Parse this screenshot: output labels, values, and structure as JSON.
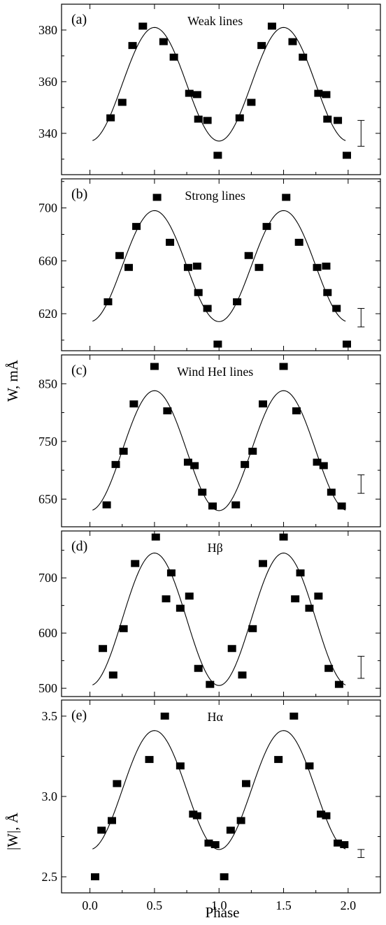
{
  "figure": {
    "xlabel": "Phase",
    "ylabel_upper": "W, mÅ",
    "ylabel_lower": "|W|, Å"
  },
  "chart_data": [
    {
      "id": "a",
      "type": "scatter",
      "tag": "(a)",
      "title": "Weak lines",
      "xlim": [
        -0.22,
        2.25
      ],
      "ylim": [
        324,
        390
      ],
      "xticks": [
        0.0,
        0.5,
        1.0,
        1.5,
        2.0
      ],
      "xtick_labels": [
        "0.0",
        "0.5",
        "1.0",
        "1.5",
        "2.0"
      ],
      "yticks": [
        340,
        360,
        380
      ],
      "ytick_labels": [
        "340",
        "360",
        "380"
      ],
      "show_xtick_labels": false,
      "grid": false,
      "points": [
        {
          "x": 0.16,
          "y": 346
        },
        {
          "x": 0.25,
          "y": 352
        },
        {
          "x": 0.33,
          "y": 374
        },
        {
          "x": 0.41,
          "y": 381.5
        },
        {
          "x": 0.57,
          "y": 375.5
        },
        {
          "x": 0.65,
          "y": 369.5
        },
        {
          "x": 0.77,
          "y": 355.5
        },
        {
          "x": 0.83,
          "y": 355
        },
        {
          "x": 0.84,
          "y": 345.5
        },
        {
          "x": 0.91,
          "y": 345
        },
        {
          "x": 0.99,
          "y": 331.5
        },
        {
          "x": 1.16,
          "y": 346
        },
        {
          "x": 1.25,
          "y": 352
        },
        {
          "x": 1.33,
          "y": 374
        },
        {
          "x": 1.41,
          "y": 381.5
        },
        {
          "x": 1.57,
          "y": 375.5
        },
        {
          "x": 1.65,
          "y": 369.5
        },
        {
          "x": 1.77,
          "y": 355.5
        },
        {
          "x": 1.83,
          "y": 355
        },
        {
          "x": 1.84,
          "y": 345.5
        },
        {
          "x": 1.92,
          "y": 345
        },
        {
          "x": 1.99,
          "y": 331.5
        }
      ],
      "fit": {
        "mean": 359,
        "amplitude": 22,
        "x_range": [
          0.02,
          1.98
        ]
      },
      "error_bar": {
        "x": 2.1,
        "y_low": 335,
        "y_high": 345
      }
    },
    {
      "id": "b",
      "type": "scatter",
      "tag": "(b)",
      "title": "Strong lines",
      "xlim": [
        -0.22,
        2.25
      ],
      "ylim": [
        592,
        722
      ],
      "xticks": [
        0.0,
        0.5,
        1.0,
        1.5,
        2.0
      ],
      "xtick_labels": [
        "0.0",
        "0.5",
        "1.0",
        "1.5",
        "2.0"
      ],
      "yticks": [
        620,
        660,
        700
      ],
      "ytick_labels": [
        "620",
        "660",
        "700"
      ],
      "show_xtick_labels": false,
      "grid": false,
      "points": [
        {
          "x": 0.14,
          "y": 629
        },
        {
          "x": 0.23,
          "y": 664
        },
        {
          "x": 0.3,
          "y": 655
        },
        {
          "x": 0.36,
          "y": 686
        },
        {
          "x": 0.52,
          "y": 708
        },
        {
          "x": 0.62,
          "y": 674
        },
        {
          "x": 0.76,
          "y": 655
        },
        {
          "x": 0.83,
          "y": 656
        },
        {
          "x": 0.84,
          "y": 636
        },
        {
          "x": 0.91,
          "y": 624
        },
        {
          "x": 0.99,
          "y": 597
        },
        {
          "x": 1.14,
          "y": 629
        },
        {
          "x": 1.23,
          "y": 664
        },
        {
          "x": 1.31,
          "y": 655
        },
        {
          "x": 1.37,
          "y": 686
        },
        {
          "x": 1.52,
          "y": 708
        },
        {
          "x": 1.62,
          "y": 674
        },
        {
          "x": 1.76,
          "y": 655
        },
        {
          "x": 1.83,
          "y": 656
        },
        {
          "x": 1.84,
          "y": 636
        },
        {
          "x": 1.91,
          "y": 624
        },
        {
          "x": 1.99,
          "y": 597
        }
      ],
      "fit": {
        "mean": 656,
        "amplitude": 42,
        "x_range": [
          0.02,
          1.98
        ]
      },
      "error_bar": {
        "x": 2.1,
        "y_low": 610,
        "y_high": 624
      }
    },
    {
      "id": "c",
      "type": "scatter",
      "tag": "(c)",
      "title": "Wind HeI lines",
      "xlim": [
        -0.22,
        2.25
      ],
      "ylim": [
        602,
        900
      ],
      "xticks": [
        0.0,
        0.5,
        1.0,
        1.5,
        2.0
      ],
      "xtick_labels": [
        "0.0",
        "0.5",
        "1.0",
        "1.5",
        "2.0"
      ],
      "yticks": [
        650,
        750,
        850
      ],
      "ytick_labels": [
        "650",
        "750",
        "850"
      ],
      "show_xtick_labels": false,
      "grid": false,
      "points": [
        {
          "x": 0.13,
          "y": 640
        },
        {
          "x": 0.2,
          "y": 710
        },
        {
          "x": 0.26,
          "y": 733
        },
        {
          "x": 0.34,
          "y": 815
        },
        {
          "x": 0.5,
          "y": 880
        },
        {
          "x": 0.6,
          "y": 803
        },
        {
          "x": 0.76,
          "y": 714
        },
        {
          "x": 0.81,
          "y": 708
        },
        {
          "x": 0.87,
          "y": 662
        },
        {
          "x": 0.95,
          "y": 638
        },
        {
          "x": 1.13,
          "y": 640
        },
        {
          "x": 1.2,
          "y": 710
        },
        {
          "x": 1.26,
          "y": 733
        },
        {
          "x": 1.34,
          "y": 815
        },
        {
          "x": 1.5,
          "y": 880
        },
        {
          "x": 1.6,
          "y": 803
        },
        {
          "x": 1.76,
          "y": 714
        },
        {
          "x": 1.81,
          "y": 708
        },
        {
          "x": 1.87,
          "y": 662
        },
        {
          "x": 1.95,
          "y": 638
        }
      ],
      "fit": {
        "mean": 734,
        "amplitude": 104,
        "x_range": [
          0.02,
          1.98
        ]
      },
      "error_bar": {
        "x": 2.1,
        "y_low": 660,
        "y_high": 692
      }
    },
    {
      "id": "d",
      "type": "scatter",
      "tag": "(d)",
      "title": "Hβ",
      "xlim": [
        -0.22,
        2.25
      ],
      "ylim": [
        485,
        785
      ],
      "xticks": [
        0.0,
        0.5,
        1.0,
        1.5,
        2.0
      ],
      "xtick_labels": [
        "0.0",
        "0.5",
        "1.0",
        "1.5",
        "2.0"
      ],
      "yticks": [
        500,
        600,
        700
      ],
      "ytick_labels": [
        "500",
        "600",
        "700"
      ],
      "show_xtick_labels": false,
      "grid": false,
      "points": [
        {
          "x": 0.1,
          "y": 572
        },
        {
          "x": 0.18,
          "y": 524
        },
        {
          "x": 0.26,
          "y": 608
        },
        {
          "x": 0.35,
          "y": 726
        },
        {
          "x": 0.51,
          "y": 774
        },
        {
          "x": 0.59,
          "y": 662
        },
        {
          "x": 0.63,
          "y": 709
        },
        {
          "x": 0.7,
          "y": 645
        },
        {
          "x": 0.77,
          "y": 667
        },
        {
          "x": 0.84,
          "y": 536
        },
        {
          "x": 0.93,
          "y": 507
        },
        {
          "x": 1.1,
          "y": 572
        },
        {
          "x": 1.18,
          "y": 524
        },
        {
          "x": 1.26,
          "y": 608
        },
        {
          "x": 1.34,
          "y": 726
        },
        {
          "x": 1.5,
          "y": 774
        },
        {
          "x": 1.59,
          "y": 662
        },
        {
          "x": 1.63,
          "y": 709
        },
        {
          "x": 1.7,
          "y": 645
        },
        {
          "x": 1.77,
          "y": 667
        },
        {
          "x": 1.85,
          "y": 536
        },
        {
          "x": 1.93,
          "y": 507
        }
      ],
      "fit": {
        "mean": 625,
        "amplitude": 120,
        "x_range": [
          0.02,
          1.98
        ]
      },
      "error_bar": {
        "x": 2.1,
        "y_low": 518,
        "y_high": 558
      }
    },
    {
      "id": "e",
      "type": "scatter",
      "tag": "(e)",
      "title": "Hα",
      "xlim": [
        -0.22,
        2.25
      ],
      "ylim": [
        2.4,
        3.6
      ],
      "xticks": [
        0.0,
        0.5,
        1.0,
        1.5,
        2.0
      ],
      "xtick_labels": [
        "0.0",
        "0.5",
        "1.0",
        "1.5",
        "2.0"
      ],
      "yticks": [
        2.5,
        3.0,
        3.5
      ],
      "ytick_labels": [
        "2.5",
        "3.0",
        "3.5"
      ],
      "show_xtick_labels": true,
      "grid": false,
      "points": [
        {
          "x": 0.04,
          "y": 2.5
        },
        {
          "x": 0.09,
          "y": 2.79
        },
        {
          "x": 0.17,
          "y": 2.85
        },
        {
          "x": 0.21,
          "y": 3.08
        },
        {
          "x": 0.46,
          "y": 3.23
        },
        {
          "x": 0.58,
          "y": 3.5
        },
        {
          "x": 0.7,
          "y": 3.19
        },
        {
          "x": 0.8,
          "y": 2.89
        },
        {
          "x": 0.83,
          "y": 2.88
        },
        {
          "x": 0.92,
          "y": 2.71
        },
        {
          "x": 0.97,
          "y": 2.7
        },
        {
          "x": 1.04,
          "y": 2.5
        },
        {
          "x": 1.09,
          "y": 2.79
        },
        {
          "x": 1.17,
          "y": 2.85
        },
        {
          "x": 1.21,
          "y": 3.08
        },
        {
          "x": 1.46,
          "y": 3.23
        },
        {
          "x": 1.58,
          "y": 3.5
        },
        {
          "x": 1.7,
          "y": 3.19
        },
        {
          "x": 1.79,
          "y": 2.89
        },
        {
          "x": 1.83,
          "y": 2.88
        },
        {
          "x": 1.92,
          "y": 2.71
        },
        {
          "x": 1.97,
          "y": 2.7
        }
      ],
      "fit": {
        "mean": 3.04,
        "amplitude": 0.37,
        "x_range": [
          0.02,
          1.98
        ]
      },
      "error_bar": {
        "x": 2.1,
        "y_low": 2.62,
        "y_high": 2.67
      }
    }
  ]
}
